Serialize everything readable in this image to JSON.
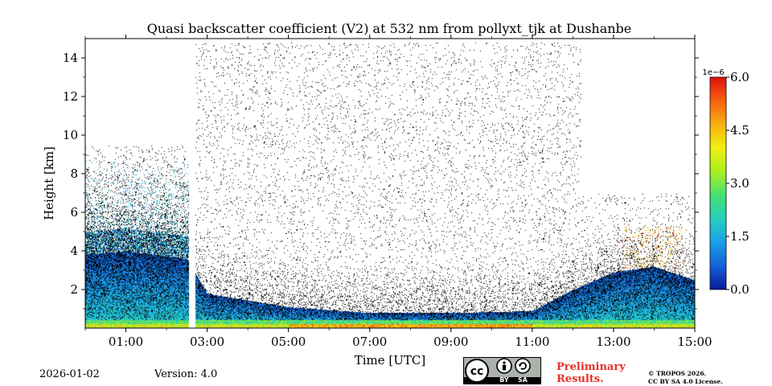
{
  "chart_data": {
    "type": "heatmap",
    "title": "Quasi backscatter coefficient (V2) at 532 nm from pollyxt_tjk at Dushanbe",
    "xlabel": "Time [UTC]",
    "ylabel": "Height [km]",
    "x_range_hours": [
      0,
      15
    ],
    "y_range_km": [
      0,
      15
    ],
    "x_ticks": [
      {
        "value": 1,
        "label": "01:00"
      },
      {
        "value": 3,
        "label": "03:00"
      },
      {
        "value": 5,
        "label": "05:00"
      },
      {
        "value": 7,
        "label": "07:00"
      },
      {
        "value": 9,
        "label": "09:00"
      },
      {
        "value": 11,
        "label": "11:00"
      },
      {
        "value": 13,
        "label": "13:00"
      },
      {
        "value": 15,
        "label": "15:00"
      }
    ],
    "y_ticks": [
      {
        "value": 2,
        "label": "2"
      },
      {
        "value": 4,
        "label": "4"
      },
      {
        "value": 6,
        "label": "6"
      },
      {
        "value": 8,
        "label": "8"
      },
      {
        "value": 10,
        "label": "10"
      },
      {
        "value": 12,
        "label": "12"
      },
      {
        "value": 14,
        "label": "14"
      }
    ],
    "colorbar": {
      "range": [
        0.0,
        6.0
      ],
      "scale_label": "1e−6",
      "ticks": [
        {
          "value": 0.0,
          "label": "0.0"
        },
        {
          "value": 1.5,
          "label": "1.5"
        },
        {
          "value": 3.0,
          "label": "3.0"
        },
        {
          "value": 4.5,
          "label": "4.5"
        },
        {
          "value": 6.0,
          "label": "6.0"
        }
      ],
      "colormap": [
        "#0a1a9e",
        "#1560d8",
        "#1aa0e8",
        "#25d0c0",
        "#48e070",
        "#a8f020",
        "#f0f010",
        "#f8b010",
        "#f86010",
        "#e01010"
      ]
    },
    "data_gap_hours": [
      2.55,
      2.7
    ],
    "boundary_layer_top_km": [
      {
        "t": 0.0,
        "h": 3.8
      },
      {
        "t": 1.0,
        "h": 4.0
      },
      {
        "t": 2.5,
        "h": 3.6
      },
      {
        "t": 3.0,
        "h": 1.8
      },
      {
        "t": 5.0,
        "h": 1.1
      },
      {
        "t": 7.0,
        "h": 0.8
      },
      {
        "t": 9.0,
        "h": 0.8
      },
      {
        "t": 11.0,
        "h": 0.9
      },
      {
        "t": 12.0,
        "h": 2.0
      },
      {
        "t": 13.0,
        "h": 2.9
      },
      {
        "t": 14.0,
        "h": 3.2
      },
      {
        "t": 15.0,
        "h": 2.5
      }
    ]
  },
  "footer": {
    "date": "2026-01-02",
    "version": "Version: 4.0",
    "preliminary_line1": "Preliminary",
    "preliminary_line2": "Results.",
    "copyright_line1": "© TROPOS 2026.",
    "copyright_line2": "CC BY SA 4.0 License.",
    "cc_labels": {
      "cc": "cc",
      "by": "BY",
      "sa": "SA"
    },
    "cc_icons": [
      "cc-icon",
      "person-icon",
      "share-alike-icon"
    ]
  }
}
